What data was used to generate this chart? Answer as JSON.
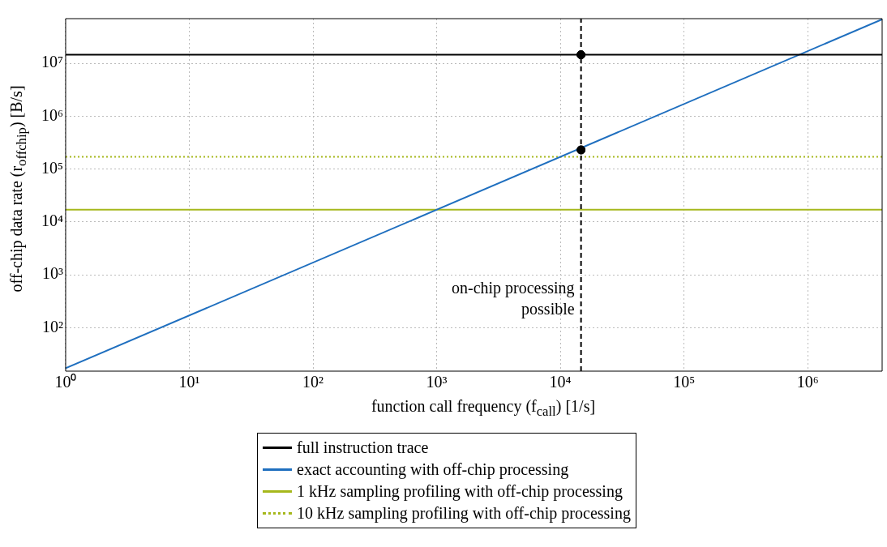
{
  "chart_data": {
    "type": "line",
    "xlabel": "function call frequency (f$_{call}$) [1/s]",
    "ylabel": "off-chip data rate (r$_{offchip}$) [B/s]",
    "x": [
      1,
      4000000
    ],
    "series": [
      {
        "name": "full instruction trace",
        "color": "#000000",
        "values": [
          14500000,
          14500000
        ]
      },
      {
        "name": "exact accounting with off-chip processing",
        "color": "#1f6fbf",
        "values": [
          17,
          68000000
        ]
      },
      {
        "name": "1 kHz sampling profiling with off-chip processing",
        "color": "#a6b81c",
        "values": [
          17000,
          17000
        ]
      },
      {
        "name": "10 kHz sampling profiling with off-chip processing",
        "color": "#a6b81c",
        "values": [
          170000,
          170000
        ],
        "line_style": "dotted"
      },
      {
        "type": "scatter",
        "color": "#000000",
        "x": [
          14700,
          14700
        ],
        "values": [
          14500000,
          230000
        ],
        "marker": "circle"
      }
    ],
    "log": "xy",
    "xlim": [
      1,
      4000000
    ],
    "ylim": [
      15,
      70000000
    ],
    "xticks": [
      {
        "value": 1,
        "label": "10⁰"
      },
      {
        "value": 10,
        "label": "10¹"
      },
      {
        "value": 100,
        "label": "10²"
      },
      {
        "value": 1000,
        "label": "10³"
      },
      {
        "value": 10000,
        "label": "10⁴"
      },
      {
        "value": 100000,
        "label": "10⁵"
      },
      {
        "value": 1000000,
        "label": "10⁶"
      }
    ],
    "yticks": [
      {
        "value": 100,
        "label": "10²"
      },
      {
        "value": 1000,
        "label": "10³"
      },
      {
        "value": 10000,
        "label": "10⁴"
      },
      {
        "value": 100000,
        "label": "10⁵"
      },
      {
        "value": 1000000,
        "label": "10⁶"
      },
      {
        "value": 10000000,
        "label": "10⁷"
      }
    ],
    "grid": true,
    "legend": "bottom",
    "line_style": "solid",
    "ref_lines": [
      {
        "axis": "x",
        "value": 14700,
        "line_style": "dashed",
        "color": "#000000"
      }
    ],
    "annotations": [
      {
        "text": "on-chip processing\npossible",
        "x": 14700,
        "y": 150
      }
    ]
  }
}
